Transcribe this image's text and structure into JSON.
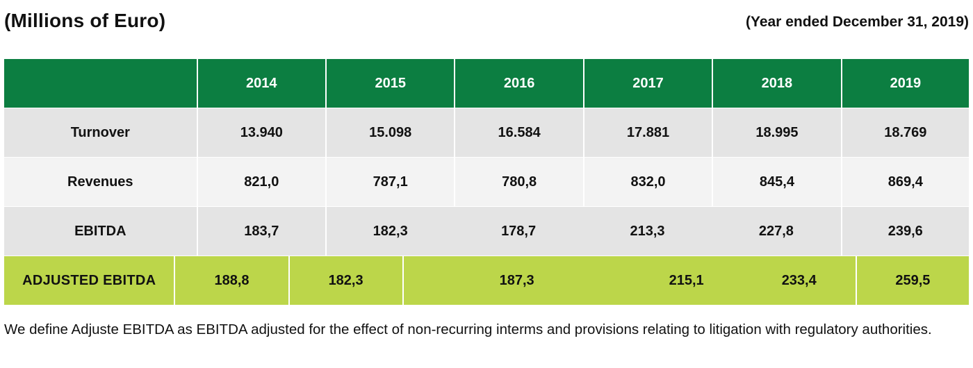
{
  "header": {
    "left_title": "(Millions of Euro)",
    "right_title": "(Year ended December 31, 2019)"
  },
  "table": {
    "columns": [
      "2014",
      "2015",
      "2016",
      "2017",
      "2018",
      "2019"
    ],
    "rows": [
      {
        "label": "Turnover",
        "values": [
          "13.940",
          "15.098",
          "16.584",
          "17.881",
          "18.995",
          "18.769"
        ]
      },
      {
        "label": "Revenues",
        "values": [
          "821,0",
          "787,1",
          "780,8",
          "832,0",
          "845,4",
          "869,4"
        ]
      },
      {
        "label": "EBITDA",
        "values": [
          "183,7",
          "182,3",
          "178,7",
          "213,3",
          "227,8",
          "239,6"
        ]
      },
      {
        "label": "ADJUSTED EBITDA",
        "values": [
          "188,8",
          "182,3",
          "187,3",
          "215,1",
          "233,4",
          "259,5"
        ]
      }
    ]
  },
  "footnote": "We define Adjuste EBITDA as EBITDA adjusted for the effect of non-recurring interms and provisions relating to litigation with regulatory authorities.",
  "colors": {
    "header_green": "#0c7e41",
    "highlight_lime": "#bcd64a",
    "row_gray": "#e4e4e4",
    "row_light": "#f3f3f3"
  }
}
